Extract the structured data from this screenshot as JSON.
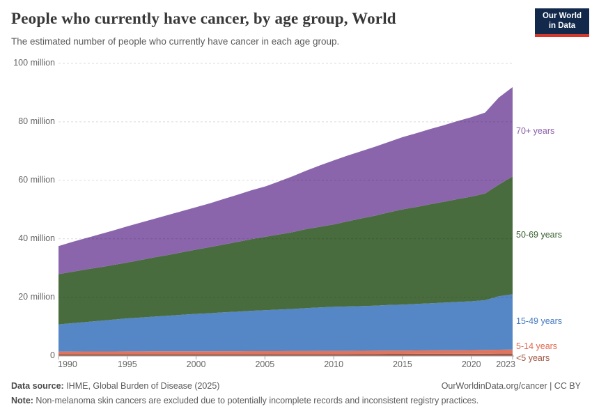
{
  "header": {
    "title": "People who currently have cancer, by age group, World",
    "subtitle": "The estimated number of people who currently have cancer in each age group.",
    "logo": {
      "line1": "Our World",
      "line2": "in Data",
      "bg_color": "#12294b",
      "bar_color": "#d4392e"
    }
  },
  "chart_data": {
    "type": "area",
    "stacked": true,
    "title": "People who currently have cancer, by age group, World",
    "xlabel": "",
    "ylabel": "",
    "unit": "million",
    "grid": true,
    "legend_position": "right",
    "xlim": [
      1990,
      2023
    ],
    "ylim": [
      0,
      100
    ],
    "x": [
      1990,
      1991,
      1992,
      1993,
      1994,
      1995,
      1996,
      1997,
      1998,
      1999,
      2000,
      2001,
      2002,
      2003,
      2004,
      2005,
      2006,
      2007,
      2008,
      2009,
      2010,
      2011,
      2012,
      2013,
      2014,
      2015,
      2016,
      2017,
      2018,
      2019,
      2020,
      2021,
      2022,
      2023
    ],
    "x_ticks": [
      "1990",
      "1995",
      "2000",
      "2005",
      "2010",
      "2015",
      "2020",
      "2023"
    ],
    "x_tick_years": [
      1990,
      1995,
      2000,
      2005,
      2010,
      2015,
      2020,
      2023
    ],
    "y_ticks": [
      {
        "value": 0,
        "label": "0"
      },
      {
        "value": 20,
        "label": "20 million"
      },
      {
        "value": 40,
        "label": "40 million"
      },
      {
        "value": 60,
        "label": "60 million"
      },
      {
        "value": 80,
        "label": "80 million"
      },
      {
        "value": 100,
        "label": "100 million"
      }
    ],
    "series": [
      {
        "name": "<5 years",
        "color": "#9e5747",
        "label_color": "#9d5742",
        "values": [
          0.5,
          0.5,
          0.5,
          0.5,
          0.5,
          0.5,
          0.5,
          0.5,
          0.5,
          0.5,
          0.5,
          0.51,
          0.51,
          0.52,
          0.52,
          0.53,
          0.53,
          0.54,
          0.54,
          0.55,
          0.55,
          0.56,
          0.57,
          0.58,
          0.59,
          0.6,
          0.61,
          0.62,
          0.63,
          0.64,
          0.65,
          0.67,
          0.68,
          0.7
        ]
      },
      {
        "name": "5-14 years",
        "color": "#e0745c",
        "label_color": "#e0694f",
        "values": [
          0.9,
          0.91,
          0.92,
          0.93,
          0.94,
          0.95,
          0.96,
          0.97,
          0.98,
          0.99,
          1.0,
          1.0,
          1.01,
          1.01,
          1.02,
          1.02,
          1.03,
          1.03,
          1.04,
          1.04,
          1.05,
          1.07,
          1.09,
          1.11,
          1.13,
          1.15,
          1.17,
          1.19,
          1.21,
          1.23,
          1.25,
          1.3,
          1.35,
          1.4
        ]
      },
      {
        "name": "15-49 years",
        "color": "#5586c6",
        "label_color": "#4579be",
        "values": [
          9.3,
          9.7,
          10.1,
          10.5,
          10.9,
          11.3,
          11.6,
          11.9,
          12.2,
          12.5,
          12.8,
          13.0,
          13.3,
          13.5,
          13.8,
          14.0,
          14.2,
          14.4,
          14.7,
          14.9,
          15.1,
          15.2,
          15.3,
          15.4,
          15.6,
          15.7,
          15.9,
          16.1,
          16.3,
          16.5,
          16.7,
          17.0,
          18.3,
          18.9
        ]
      },
      {
        "name": "50-69 years",
        "color": "#496c3e",
        "label_color": "#38602e",
        "values": [
          17.2,
          17.6,
          18.0,
          18.3,
          18.7,
          19.1,
          19.7,
          20.3,
          20.8,
          21.4,
          22.0,
          22.6,
          23.2,
          23.9,
          24.5,
          25.1,
          25.7,
          26.3,
          27.0,
          27.6,
          28.2,
          29.1,
          30.0,
          30.8,
          31.7,
          32.6,
          33.2,
          33.9,
          34.5,
          35.2,
          35.8,
          36.5,
          38.2,
          40.3
        ]
      },
      {
        "name": "70+ years",
        "color": "#8b65ac",
        "label_color": "#8a5fa8",
        "values": [
          9.6,
          10.2,
          10.7,
          11.3,
          11.8,
          12.4,
          12.8,
          13.2,
          13.7,
          14.1,
          14.5,
          15.0,
          15.6,
          16.1,
          16.7,
          17.2,
          18.1,
          19.1,
          20.0,
          21.0,
          21.9,
          22.5,
          23.0,
          23.6,
          24.1,
          24.7,
          25.2,
          25.7,
          26.2,
          26.7,
          27.2,
          27.7,
          29.8,
          30.6
        ]
      }
    ]
  },
  "footer": {
    "source_label": "Data source:",
    "source_value": " IHME, Global Burden of Disease (2025)",
    "link": "OurWorldinData.org/cancer | CC BY",
    "note_label": "Note:",
    "note_value": " Non-melanoma skin cancers are excluded due to potentially incomplete records and inconsistent registry practices."
  }
}
